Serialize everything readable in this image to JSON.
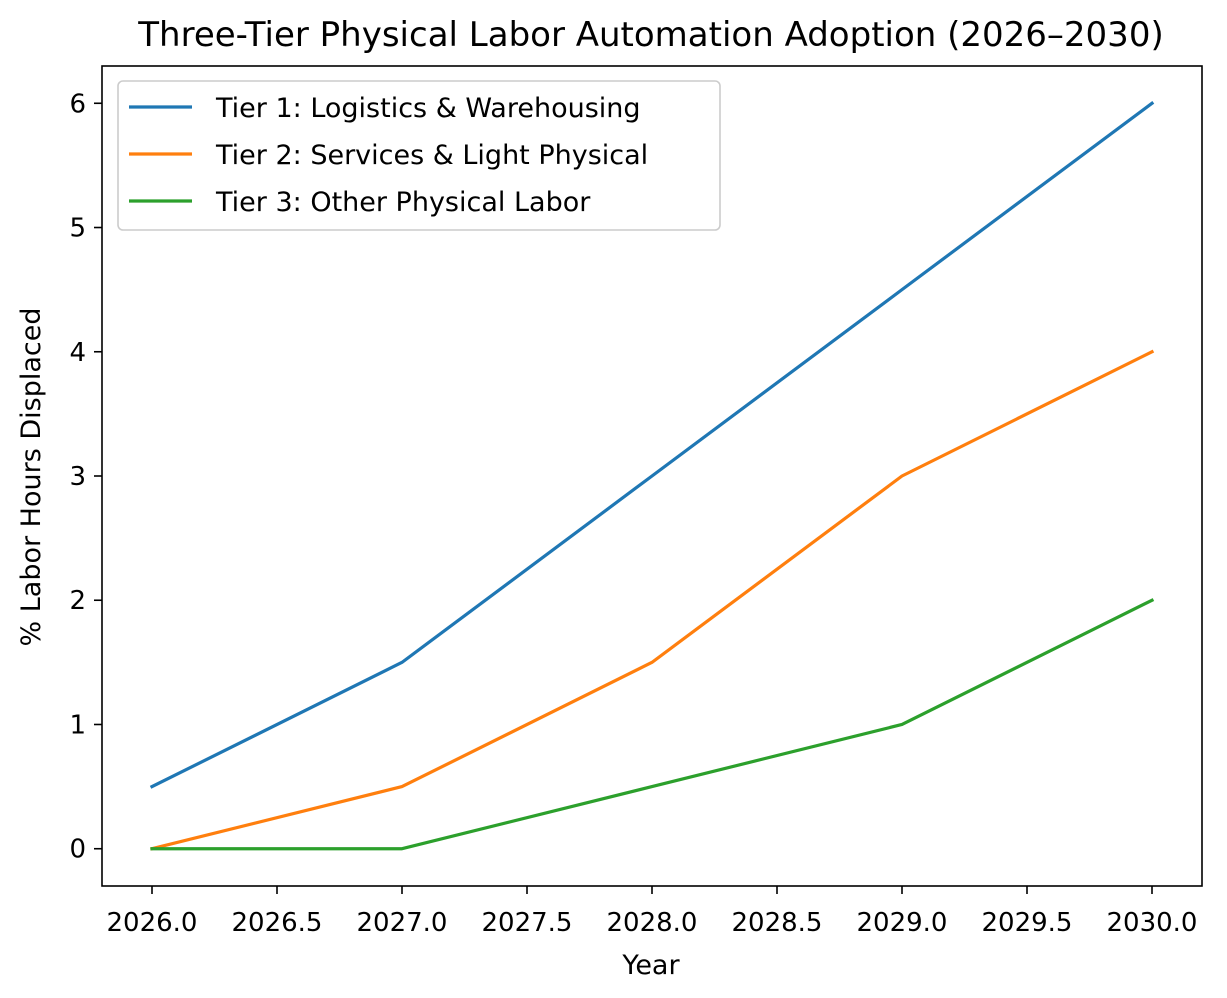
{
  "chart_data": {
    "type": "line",
    "title": "Three-Tier Physical Labor Automation Adoption (2026–2030)",
    "xlabel": "Year",
    "ylabel": "% Labor Hours Displaced",
    "xlim": [
      2025.8,
      2030.2
    ],
    "ylim": [
      -0.3,
      6.3
    ],
    "x_ticks": [
      2026.0,
      2026.5,
      2027.0,
      2027.5,
      2028.0,
      2028.5,
      2029.0,
      2029.5,
      2030.0
    ],
    "x_tick_labels": [
      "2026.0",
      "2026.5",
      "2027.0",
      "2027.5",
      "2028.0",
      "2028.5",
      "2029.0",
      "2029.5",
      "2030.0"
    ],
    "y_ticks": [
      0,
      1,
      2,
      3,
      4,
      5,
      6
    ],
    "y_tick_labels": [
      "0",
      "1",
      "2",
      "3",
      "4",
      "5",
      "6"
    ],
    "grid": false,
    "legend_position": "top-left",
    "x": [
      2026,
      2027,
      2028,
      2029,
      2030
    ],
    "series": [
      {
        "name": "Tier 1: Logistics & Warehousing",
        "values": [
          0.5,
          1.5,
          3.0,
          4.5,
          6.0
        ],
        "color": "#1f77b4"
      },
      {
        "name": "Tier 2: Services & Light Physical",
        "values": [
          0.0,
          0.5,
          1.5,
          3.0,
          4.0
        ],
        "color": "#ff7f0e"
      },
      {
        "name": "Tier 3: Other Physical Labor",
        "values": [
          0.0,
          0.0,
          0.5,
          1.0,
          2.0
        ],
        "color": "#2ca02c"
      }
    ]
  }
}
